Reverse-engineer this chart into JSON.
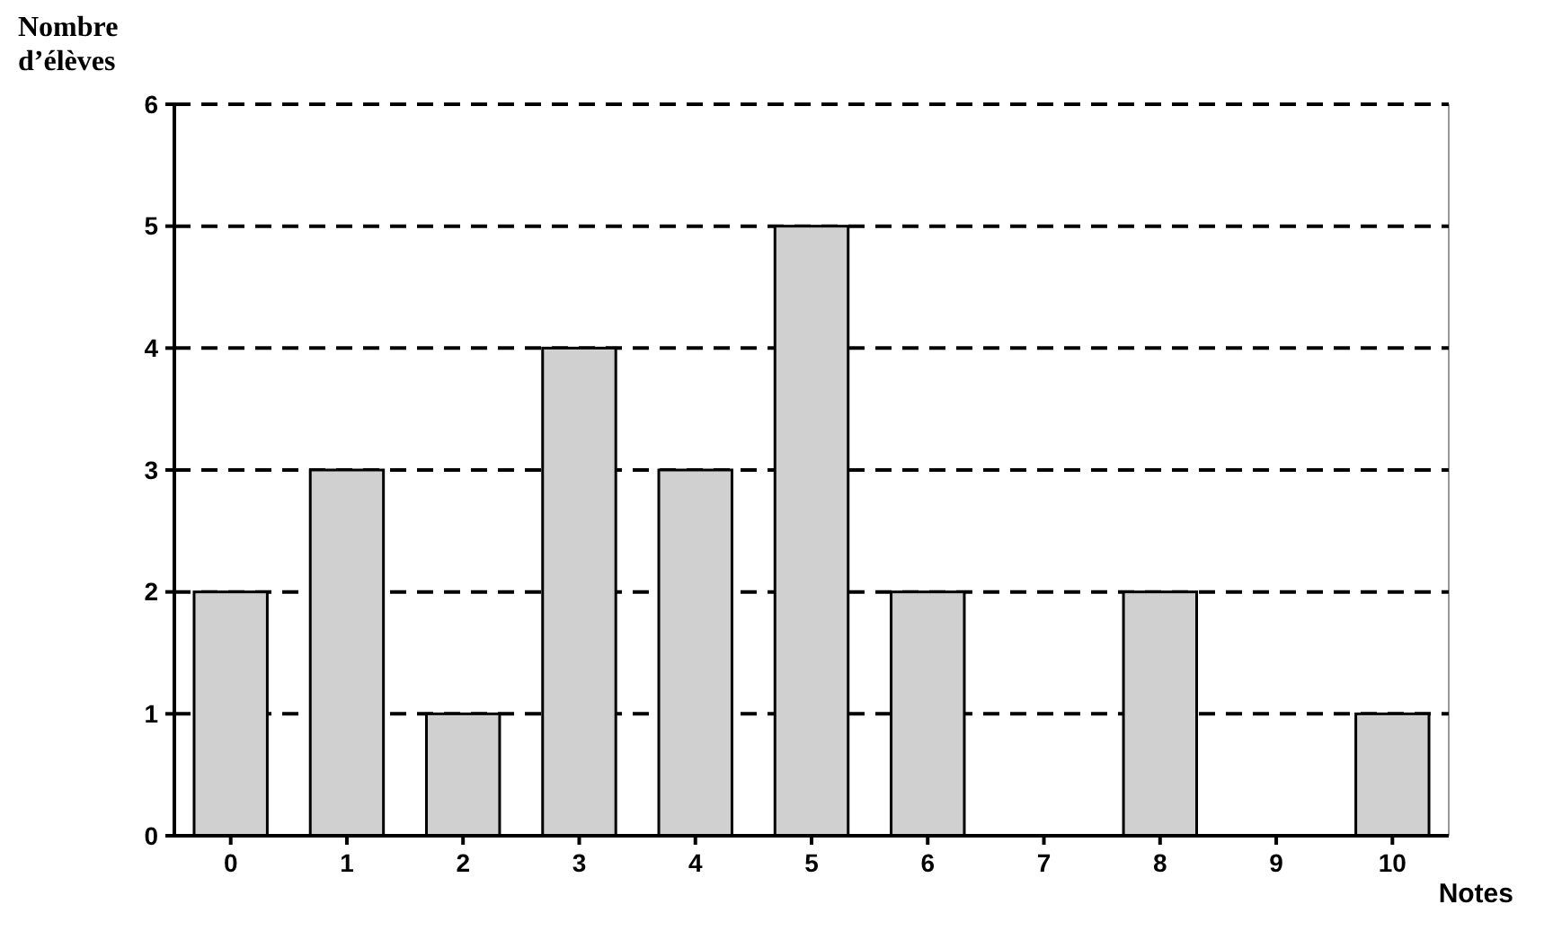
{
  "chart_data": {
    "type": "bar",
    "xlabel": "Notes",
    "ylabel": "Nombre d’élèves",
    "categories": [
      "0",
      "1",
      "2",
      "3",
      "4",
      "5",
      "6",
      "7",
      "8",
      "9",
      "10"
    ],
    "values": [
      2,
      3,
      1,
      4,
      3,
      5,
      2,
      0,
      2,
      0,
      1
    ],
    "color": "#d0d0d0",
    "ylim": [
      0,
      6
    ],
    "yticks": [
      0,
      1,
      2,
      3,
      4,
      5,
      6
    ],
    "grid": "y"
  }
}
